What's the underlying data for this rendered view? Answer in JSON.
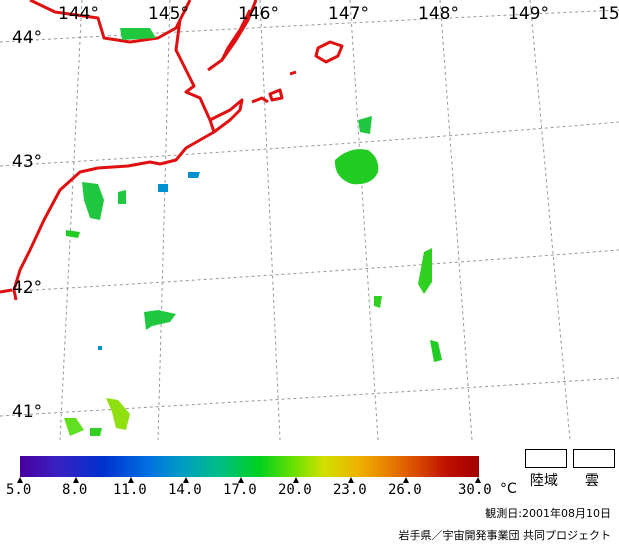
{
  "map": {
    "longitude_labels": [
      "144°",
      "145°",
      "146°",
      "147°",
      "148°",
      "149°",
      "15"
    ],
    "latitude_labels": [
      "44°",
      "43°",
      "42°",
      "41°"
    ],
    "colors": {
      "coastline": "#e01010",
      "grid": "#999999"
    }
  },
  "scale": {
    "ticks": [
      "5.0",
      "8.0",
      "11.0",
      "14.0",
      "17.0",
      "20.0",
      "23.0",
      "26.0",
      "30.0"
    ],
    "unit": "°C"
  },
  "legend": {
    "land_label": "陸域",
    "cloud_label": "雲"
  },
  "footer": {
    "observation_date": "観測日:2001年08月10日",
    "credit": "岩手県／宇宙開発事業団 共同プロジェクト"
  }
}
